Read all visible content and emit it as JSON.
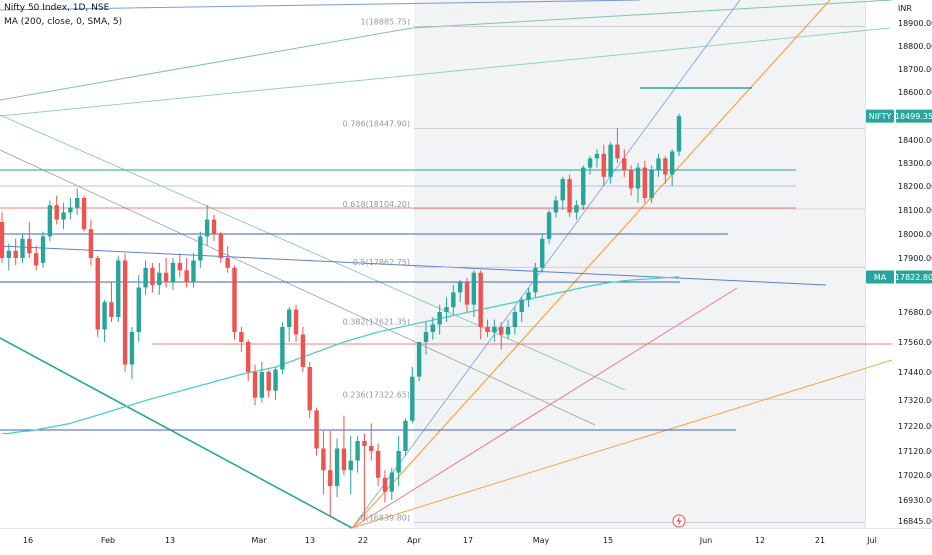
{
  "legend": {
    "symbol": "Nifty 50 Index, 1D, NSE",
    "indicator": "MA (200, close, 0, SMA, 5)"
  },
  "colors": {
    "up": "#26a69a",
    "down": "#ef5350",
    "ma": "#4dd0c4",
    "price_tag": "#26a69a",
    "ma_tag": "#26a69a"
  },
  "currency_label": "INR",
  "y_ticks": [
    "18900.00",
    "18800.00",
    "18700.00",
    "18600.00",
    "18400.00",
    "18300.00",
    "18200.00",
    "18100.00",
    "18000.00",
    "17900.00",
    "17680.00",
    "17560.00",
    "17440.00",
    "17320.00",
    "17220.00",
    "17120.00",
    "17020.00",
    "16930.00",
    "16845.00"
  ],
  "x_ticks": [
    "16",
    "Feb",
    "13",
    "Mar",
    "13",
    "22",
    "Apr",
    "17",
    "May",
    "15",
    "Jun",
    "12",
    "21",
    "Jul"
  ],
  "price_tag": {
    "label": "NIFTY",
    "value": "18499.35"
  },
  "ma_tag": {
    "label": "MA",
    "value": "17822.80"
  },
  "fib_levels": [
    {
      "label": "1(18885.75)",
      "price": 18885.75
    },
    {
      "label": "0.786(18447.90)",
      "price": 18447.9
    },
    {
      "label": "0.618(18104.20)",
      "price": 18104.2
    },
    {
      "label": "0.5(17862.75)",
      "price": 17862.75
    },
    {
      "label": "0.382(17621.35)",
      "price": 17621.35
    },
    {
      "label": "0.236(17322.65)",
      "price": 17322.65
    },
    {
      "label": "0(16839.80)",
      "price": 16839.8
    }
  ],
  "chart_data": {
    "type": "candlestick",
    "title": "Nifty 50 Index, 1D, NSE",
    "ylabel": "INR",
    "ylim": [
      16830,
      18950
    ],
    "candles": [
      {
        "o": 18050,
        "h": 18090,
        "l": 17880,
        "c": 17900
      },
      {
        "o": 17900,
        "h": 17960,
        "l": 17850,
        "c": 17930
      },
      {
        "o": 17930,
        "h": 17980,
        "l": 17870,
        "c": 17900
      },
      {
        "o": 17900,
        "h": 18000,
        "l": 17880,
        "c": 17980
      },
      {
        "o": 17980,
        "h": 18050,
        "l": 17900,
        "c": 17920
      },
      {
        "o": 17920,
        "h": 17950,
        "l": 17850,
        "c": 17870
      },
      {
        "o": 17880,
        "h": 18010,
        "l": 17860,
        "c": 17990
      },
      {
        "o": 17990,
        "h": 18140,
        "l": 17970,
        "c": 18120
      },
      {
        "o": 18120,
        "h": 18160,
        "l": 18040,
        "c": 18060
      },
      {
        "o": 18060,
        "h": 18130,
        "l": 18020,
        "c": 18090
      },
      {
        "o": 18090,
        "h": 18150,
        "l": 18060,
        "c": 18110
      },
      {
        "o": 18110,
        "h": 18190,
        "l": 18080,
        "c": 18150
      },
      {
        "o": 18150,
        "h": 18160,
        "l": 18010,
        "c": 18020
      },
      {
        "o": 18020,
        "h": 18060,
        "l": 17870,
        "c": 17900
      },
      {
        "o": 17900,
        "h": 17910,
        "l": 17580,
        "c": 17610
      },
      {
        "o": 17610,
        "h": 17730,
        "l": 17560,
        "c": 17720
      },
      {
        "o": 17720,
        "h": 17800,
        "l": 17640,
        "c": 17660
      },
      {
        "o": 17660,
        "h": 17910,
        "l": 17640,
        "c": 17890
      },
      {
        "o": 17890,
        "h": 17920,
        "l": 17440,
        "c": 17470
      },
      {
        "o": 17470,
        "h": 17620,
        "l": 17410,
        "c": 17600
      },
      {
        "o": 17600,
        "h": 17830,
        "l": 17560,
        "c": 17780
      },
      {
        "o": 17780,
        "h": 17890,
        "l": 17750,
        "c": 17860
      },
      {
        "o": 17860,
        "h": 17880,
        "l": 17760,
        "c": 17790
      },
      {
        "o": 17790,
        "h": 17880,
        "l": 17750,
        "c": 17840
      },
      {
        "o": 17840,
        "h": 17900,
        "l": 17780,
        "c": 17800
      },
      {
        "o": 17800,
        "h": 17900,
        "l": 17770,
        "c": 17880
      },
      {
        "o": 17880,
        "h": 17920,
        "l": 17820,
        "c": 17850
      },
      {
        "o": 17850,
        "h": 17900,
        "l": 17780,
        "c": 17800
      },
      {
        "o": 17800,
        "h": 17920,
        "l": 17780,
        "c": 17890
      },
      {
        "o": 17890,
        "h": 18010,
        "l": 17860,
        "c": 17990
      },
      {
        "o": 17990,
        "h": 18120,
        "l": 17950,
        "c": 18060
      },
      {
        "o": 18060,
        "h": 18080,
        "l": 17970,
        "c": 18000
      },
      {
        "o": 18000,
        "h": 18010,
        "l": 17880,
        "c": 17900
      },
      {
        "o": 17900,
        "h": 17950,
        "l": 17840,
        "c": 17860
      },
      {
        "o": 17860,
        "h": 17870,
        "l": 17570,
        "c": 17600
      },
      {
        "o": 17600,
        "h": 17620,
        "l": 17520,
        "c": 17560
      },
      {
        "o": 17560,
        "h": 17570,
        "l": 17400,
        "c": 17440
      },
      {
        "o": 17440,
        "h": 17470,
        "l": 17300,
        "c": 17330
      },
      {
        "o": 17330,
        "h": 17480,
        "l": 17310,
        "c": 17440
      },
      {
        "o": 17440,
        "h": 17450,
        "l": 17330,
        "c": 17360
      },
      {
        "o": 17360,
        "h": 17460,
        "l": 17320,
        "c": 17450
      },
      {
        "o": 17450,
        "h": 17640,
        "l": 17430,
        "c": 17620
      },
      {
        "o": 17620,
        "h": 17700,
        "l": 17560,
        "c": 17690
      },
      {
        "o": 17690,
        "h": 17710,
        "l": 17560,
        "c": 17590
      },
      {
        "o": 17590,
        "h": 17620,
        "l": 17440,
        "c": 17460
      },
      {
        "o": 17460,
        "h": 17480,
        "l": 17250,
        "c": 17280
      },
      {
        "o": 17280,
        "h": 17290,
        "l": 17100,
        "c": 17130
      },
      {
        "o": 17130,
        "h": 17200,
        "l": 16950,
        "c": 17040
      },
      {
        "o": 17040,
        "h": 17200,
        "l": 16860,
        "c": 16980
      },
      {
        "o": 16980,
        "h": 17170,
        "l": 16940,
        "c": 17130
      },
      {
        "o": 17130,
        "h": 17260,
        "l": 17020,
        "c": 17040
      },
      {
        "o": 17040,
        "h": 17180,
        "l": 16950,
        "c": 17080
      },
      {
        "o": 17080,
        "h": 17180,
        "l": 17030,
        "c": 17160
      },
      {
        "o": 17160,
        "h": 17190,
        "l": 16850,
        "c": 17140
      },
      {
        "o": 17140,
        "h": 17230,
        "l": 17080,
        "c": 17120
      },
      {
        "o": 17120,
        "h": 17150,
        "l": 16980,
        "c": 17010
      },
      {
        "o": 17010,
        "h": 17040,
        "l": 16920,
        "c": 16960
      },
      {
        "o": 16960,
        "h": 17050,
        "l": 16930,
        "c": 17030
      },
      {
        "o": 17030,
        "h": 17180,
        "l": 16980,
        "c": 17120
      },
      {
        "o": 17120,
        "h": 17250,
        "l": 17100,
        "c": 17240
      },
      {
        "o": 17240,
        "h": 17460,
        "l": 17230,
        "c": 17420
      },
      {
        "o": 17420,
        "h": 17560,
        "l": 17400,
        "c": 17560
      },
      {
        "o": 17560,
        "h": 17640,
        "l": 17510,
        "c": 17600
      },
      {
        "o": 17600,
        "h": 17660,
        "l": 17570,
        "c": 17630
      },
      {
        "o": 17630,
        "h": 17710,
        "l": 17590,
        "c": 17680
      },
      {
        "o": 17680,
        "h": 17740,
        "l": 17640,
        "c": 17700
      },
      {
        "o": 17700,
        "h": 17790,
        "l": 17670,
        "c": 17760
      },
      {
        "o": 17760,
        "h": 17810,
        "l": 17720,
        "c": 17800
      },
      {
        "o": 17800,
        "h": 17820,
        "l": 17680,
        "c": 17710
      },
      {
        "o": 17710,
        "h": 17850,
        "l": 17660,
        "c": 17840
      },
      {
        "o": 17840,
        "h": 17850,
        "l": 17570,
        "c": 17620
      },
      {
        "o": 17620,
        "h": 17650,
        "l": 17580,
        "c": 17600
      },
      {
        "o": 17600,
        "h": 17650,
        "l": 17560,
        "c": 17620
      },
      {
        "o": 17620,
        "h": 17640,
        "l": 17530,
        "c": 17590
      },
      {
        "o": 17590,
        "h": 17650,
        "l": 17570,
        "c": 17620
      },
      {
        "o": 17620,
        "h": 17700,
        "l": 17590,
        "c": 17680
      },
      {
        "o": 17680,
        "h": 17740,
        "l": 17640,
        "c": 17730
      },
      {
        "o": 17730,
        "h": 17780,
        "l": 17700,
        "c": 17760
      },
      {
        "o": 17760,
        "h": 17880,
        "l": 17740,
        "c": 17860
      },
      {
        "o": 17860,
        "h": 18000,
        "l": 17840,
        "c": 17980
      },
      {
        "o": 17980,
        "h": 18100,
        "l": 17960,
        "c": 18090
      },
      {
        "o": 18090,
        "h": 18160,
        "l": 18070,
        "c": 18140
      },
      {
        "o": 18140,
        "h": 18240,
        "l": 18100,
        "c": 18230
      },
      {
        "o": 18230,
        "h": 18250,
        "l": 18070,
        "c": 18090
      },
      {
        "o": 18090,
        "h": 18140,
        "l": 18060,
        "c": 18120
      },
      {
        "o": 18120,
        "h": 18290,
        "l": 18100,
        "c": 18280
      },
      {
        "o": 18280,
        "h": 18330,
        "l": 18250,
        "c": 18320
      },
      {
        "o": 18320,
        "h": 18360,
        "l": 18280,
        "c": 18340
      },
      {
        "o": 18340,
        "h": 18380,
        "l": 18200,
        "c": 18240
      },
      {
        "o": 18240,
        "h": 18390,
        "l": 18210,
        "c": 18380
      },
      {
        "o": 18380,
        "h": 18450,
        "l": 18300,
        "c": 18320
      },
      {
        "o": 18320,
        "h": 18360,
        "l": 18240,
        "c": 18270
      },
      {
        "o": 18270,
        "h": 18290,
        "l": 18160,
        "c": 18190
      },
      {
        "o": 18190,
        "h": 18300,
        "l": 18130,
        "c": 18280
      },
      {
        "o": 18280,
        "h": 18310,
        "l": 18130,
        "c": 18150
      },
      {
        "o": 18150,
        "h": 18290,
        "l": 18130,
        "c": 18270
      },
      {
        "o": 18270,
        "h": 18340,
        "l": 18240,
        "c": 18320
      },
      {
        "o": 18320,
        "h": 18330,
        "l": 18210,
        "c": 18250
      },
      {
        "o": 18250,
        "h": 18360,
        "l": 18200,
        "c": 18350
      },
      {
        "o": 18350,
        "h": 18510,
        "l": 18330,
        "c": 18499.35
      }
    ],
    "moving_average": {
      "name": "MA (200, close, 0, SMA, 5)",
      "values": [
        17190,
        17190,
        17195,
        17198,
        17200,
        17205,
        17210,
        17215,
        17220,
        17225,
        17230,
        17238,
        17246,
        17254,
        17262,
        17270,
        17278,
        17286,
        17294,
        17302,
        17310,
        17318,
        17326,
        17334,
        17342,
        17350,
        17358,
        17366,
        17374,
        17382,
        17390,
        17398,
        17406,
        17414,
        17422,
        17430,
        17436,
        17442,
        17448,
        17454,
        17460,
        17470,
        17480,
        17490,
        17500,
        17510,
        17520,
        17530,
        17540,
        17550,
        17560,
        17568,
        17576,
        17584,
        17592,
        17600,
        17606,
        17612,
        17618,
        17624,
        17630,
        17636,
        17642,
        17648,
        17654,
        17660,
        17666,
        17672,
        17678,
        17684,
        17690,
        17696,
        17702,
        17708,
        17714,
        17720,
        17726,
        17732,
        17738,
        17744,
        17750,
        17756,
        17762,
        17768,
        17774,
        17780,
        17786,
        17791,
        17796,
        17800,
        17804,
        17807,
        17810,
        17812,
        17814,
        17816,
        17818,
        17820,
        17821,
        17822.8
      ]
    }
  }
}
